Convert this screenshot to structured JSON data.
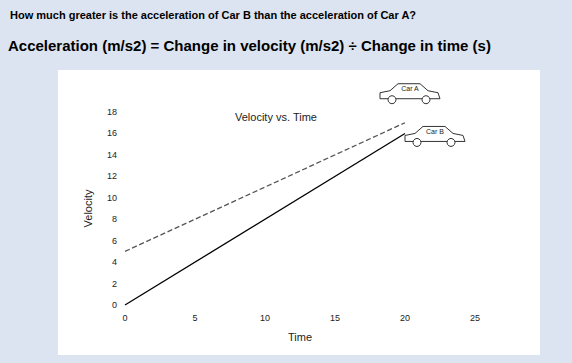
{
  "header": {
    "question": "How much greater is the acceleration of Car B than the acceleration of Car A?",
    "formula": "Acceleration (m/s2) = Change in velocity (m/s2) ÷ Change in time (s)"
  },
  "chart_data": {
    "type": "line",
    "title": "Velocity vs. Time",
    "x_label": "Time",
    "y_label": "Velocity",
    "x": [
      0,
      20
    ],
    "series": [
      {
        "name": "Car A",
        "color": "#555555",
        "line_style": "dashed",
        "values": [
          5,
          17
        ]
      },
      {
        "name": "Car B",
        "color": "#000000",
        "line_style": "solid",
        "values": [
          0,
          16
        ]
      }
    ],
    "xlim": [
      0,
      25
    ],
    "xticks": [
      0,
      5,
      10,
      15,
      20,
      25
    ],
    "ylim": [
      0,
      18
    ],
    "yticks": [
      0,
      2,
      4,
      6,
      8,
      10,
      12,
      14,
      16,
      18
    ],
    "grid": false
  }
}
